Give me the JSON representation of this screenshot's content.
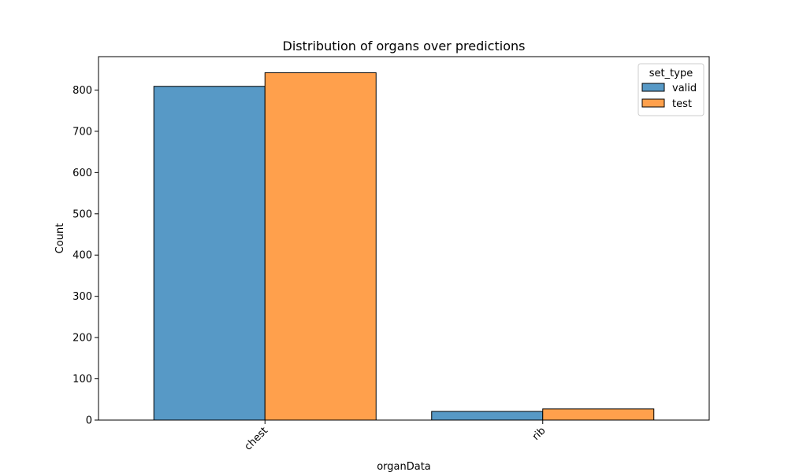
{
  "chart_data": {
    "type": "bar",
    "title": "Distribution of organs over predictions",
    "xlabel": "organData",
    "ylabel": "Count",
    "categories": [
      "chest",
      "rib"
    ],
    "series": [
      {
        "name": "valid",
        "values": [
          809,
          21
        ],
        "color": "#5799c6"
      },
      {
        "name": "test",
        "values": [
          842,
          27
        ],
        "color": "#ffa04c"
      }
    ],
    "ylim": [
      0,
      881
    ],
    "yticks": [
      0,
      100,
      200,
      300,
      400,
      500,
      600,
      700,
      800
    ],
    "grid": false,
    "legend": {
      "title": "set_type",
      "placement": "top-right"
    }
  }
}
